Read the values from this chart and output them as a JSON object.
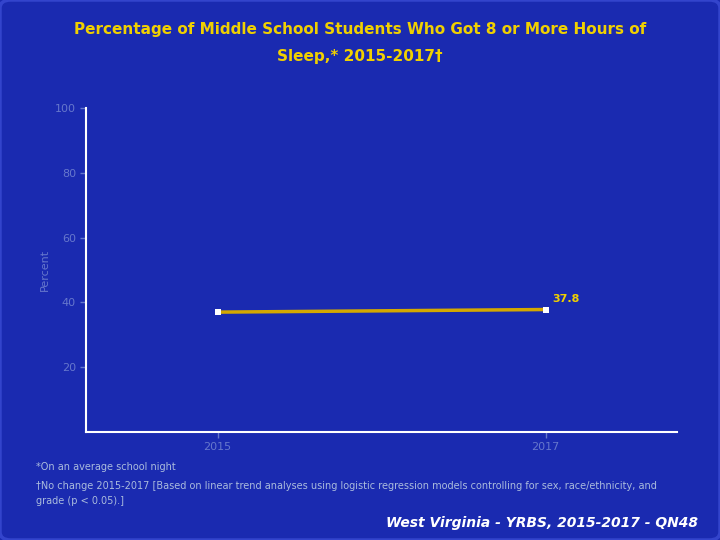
{
  "title_line1": "Percentage of Middle School Students Who Got 8 or More Hours of",
  "title_line2": "Sleep,* 2015-2017†",
  "years": [
    2015,
    2017
  ],
  "values": [
    37.0,
    37.8
  ],
  "data_label_2017": "37.8",
  "ylabel": "Percent",
  "ylim": [
    0,
    100
  ],
  "yticks": [
    20,
    40,
    60,
    80,
    100
  ],
  "xticks": [
    2015,
    2017
  ],
  "bg_color": "#1a2ab0",
  "line_color": "#d4a800",
  "marker_color": "#ffffff",
  "marker_size": 5,
  "axis_color": "#ffffff",
  "tick_color": "#6677cc",
  "title_color": "#f0d000",
  "ylabel_color": "#6677cc",
  "footnote1": "*On an average school night",
  "footnote2": "†No change 2015-2017 [Based on linear trend analyses using logistic regression models controlling for sex, race/ethnicity, and",
  "footnote3": "grade (p < 0.05).]",
  "footer_text": "West Virginia - YRBS, 2015-2017 - QN48",
  "footer_color": "#ffffff",
  "footnote_color": "#aabbdd",
  "label_color": "#f0d000",
  "title_fontsize": 11,
  "tick_fontsize": 8
}
